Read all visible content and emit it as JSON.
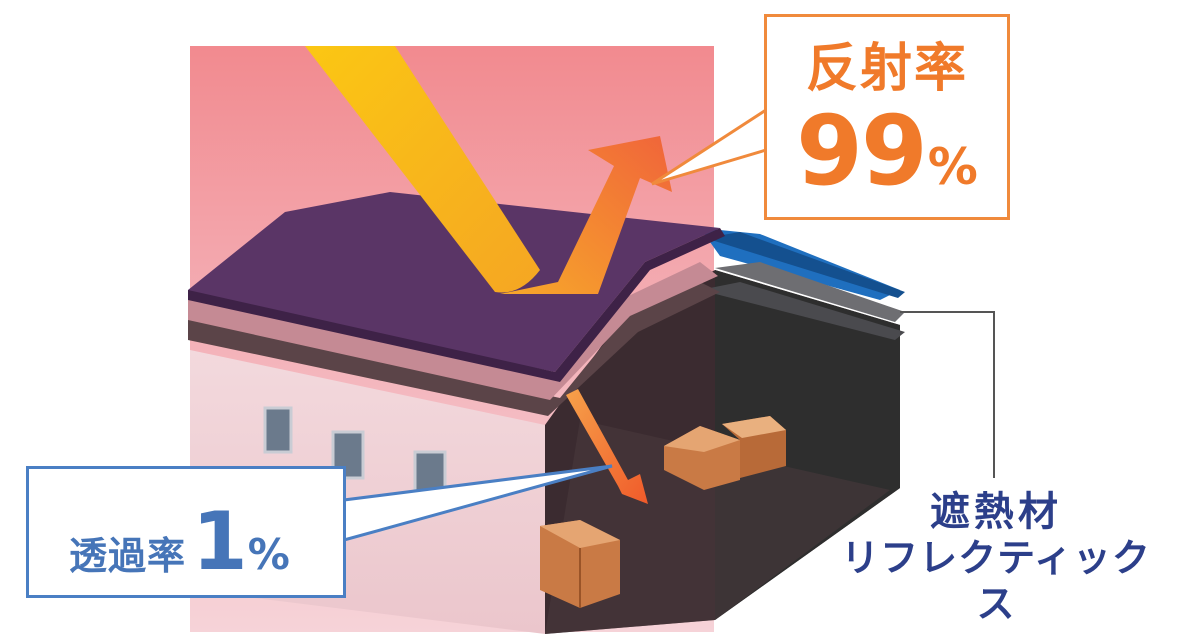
{
  "reflection": {
    "label": "反射率",
    "value": "99",
    "unit": "%"
  },
  "transmission": {
    "label": "透過率",
    "value": "1",
    "unit": "%"
  },
  "material": {
    "label": "遮熱材",
    "name": "リフレクティックス"
  },
  "colors": {
    "reflect_accent": "#f07a2a",
    "transmit_accent": "#4675b8",
    "material_text": "#2c3f8a",
    "roof": "#5a3566",
    "sky_top": "#f28a8f",
    "sky_bottom": "#f8d8dc",
    "insulation_blue": "#1f6fbf"
  },
  "icons": [
    "sun-ray-arrow",
    "reflected-ray-arrow",
    "transmitted-ray-arrow",
    "cardboard-box"
  ]
}
